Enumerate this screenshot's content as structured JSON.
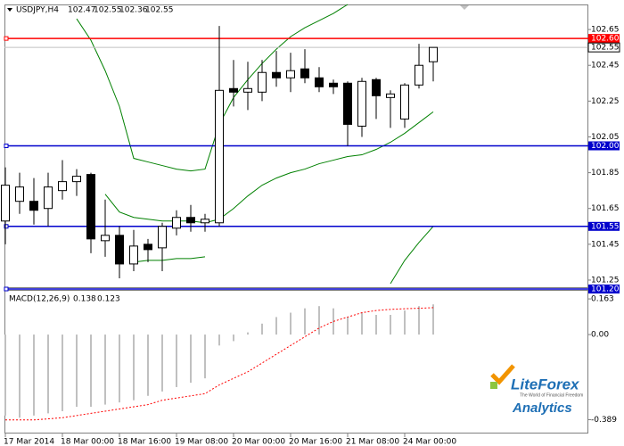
{
  "chart_data": [
    {
      "type": "candlestick",
      "title": "USDJPY,H4",
      "categories": [
        "17 Mar 2014",
        null,
        null,
        null,
        "18 Mar 00:00",
        null,
        null,
        null,
        "18 Mar 16:00",
        null,
        null,
        null,
        "19 Mar 08:00",
        null,
        null,
        null,
        "20 Mar 00:00",
        null,
        null,
        null,
        "20 Mar 16:00",
        null,
        null,
        null,
        "21 Mar 08:00",
        null,
        null,
        null,
        "24 Mar 00:00",
        null,
        null
      ],
      "open": [
        101.58,
        101.69,
        101.69,
        101.65,
        101.75,
        101.8,
        101.84,
        101.47,
        101.5,
        101.34,
        101.45,
        101.43,
        101.54,
        101.6,
        101.57,
        101.57,
        102.32,
        102.3,
        102.3,
        102.41,
        102.38,
        102.43,
        102.38,
        102.35,
        102.35,
        102.11,
        102.37,
        102.27,
        102.15,
        102.34,
        102.47
      ],
      "high": [
        101.88,
        101.85,
        101.82,
        101.85,
        101.92,
        101.87,
        101.85,
        101.7,
        101.55,
        101.53,
        101.48,
        101.57,
        101.64,
        101.67,
        101.62,
        102.67,
        102.48,
        102.47,
        102.48,
        102.53,
        102.52,
        102.54,
        102.44,
        102.37,
        102.36,
        102.38,
        102.38,
        102.31,
        102.35,
        102.57,
        102.55
      ],
      "low": [
        101.45,
        101.62,
        101.56,
        101.55,
        101.7,
        101.72,
        101.4,
        101.38,
        101.26,
        101.3,
        101.35,
        101.3,
        101.5,
        101.52,
        101.52,
        101.55,
        102.22,
        102.2,
        102.25,
        102.33,
        102.3,
        102.35,
        102.3,
        102.29,
        102.0,
        102.05,
        102.15,
        102.1,
        102.1,
        102.32,
        102.36
      ],
      "close": [
        101.78,
        101.77,
        101.64,
        101.77,
        101.8,
        101.83,
        101.48,
        101.5,
        101.34,
        101.44,
        101.42,
        101.55,
        101.6,
        101.57,
        101.59,
        102.31,
        102.3,
        102.32,
        102.41,
        102.38,
        102.42,
        102.38,
        102.33,
        102.33,
        102.12,
        102.36,
        102.28,
        102.29,
        102.34,
        102.45,
        102.55
      ],
      "up_color": "#ffffff",
      "down_color": "#000000",
      "bands": [
        {
          "color": "#008000",
          "values": [
            null,
            null,
            null,
            null,
            null,
            102.71,
            102.59,
            102.42,
            102.22,
            101.93,
            101.91,
            101.89,
            101.87,
            101.86,
            101.87,
            102.12,
            102.27,
            102.37,
            102.46,
            102.54,
            102.61,
            102.66,
            102.7,
            102.74,
            102.79,
            null,
            null,
            null,
            null,
            null,
            null
          ]
        },
        {
          "color": "#008000",
          "values": [
            null,
            null,
            null,
            null,
            null,
            null,
            null,
            101.73,
            101.63,
            101.6,
            101.59,
            101.58,
            101.58,
            101.58,
            101.57,
            101.59,
            101.65,
            101.72,
            101.78,
            101.82,
            101.85,
            101.87,
            101.9,
            101.92,
            101.94,
            101.95,
            101.98,
            102.02,
            102.07,
            102.13,
            102.19
          ]
        },
        {
          "color": "#008000",
          "values": [
            null,
            null,
            null,
            null,
            null,
            null,
            null,
            null,
            null,
            101.35,
            101.36,
            101.36,
            101.37,
            101.37,
            101.38,
            null,
            null,
            null,
            null,
            null,
            null,
            null,
            null,
            null,
            null,
            null,
            null,
            101.23,
            101.36,
            101.46,
            101.55
          ]
        }
      ],
      "levels": [
        {
          "value": 102.6,
          "label": "102.60",
          "color": "#ff0000"
        },
        {
          "value": 102,
          "label": "102.00",
          "color": "#0000cc"
        },
        {
          "value": 101.55,
          "label": "101.55",
          "color": "#0000cc"
        },
        {
          "value": 101.2,
          "label": "101.20",
          "color": "#0000cc"
        }
      ],
      "ylim": [
        101.21,
        102.79
      ],
      "yticks": [
        102.65,
        102.45,
        102.25,
        102.05,
        101.85,
        101.65,
        101.45,
        101.25
      ]
    },
    {
      "type": "macd",
      "title": "MACD(12,26,9)",
      "histogram": {
        "color": "#c0c0c0",
        "values": [
          -0.37,
          -0.38,
          -0.37,
          -0.36,
          -0.35,
          -0.33,
          -0.33,
          -0.32,
          -0.31,
          -0.3,
          -0.28,
          -0.26,
          -0.24,
          -0.22,
          -0.2,
          -0.05,
          -0.03,
          0.01,
          0.05,
          0.08,
          0.1,
          0.12,
          0.13,
          0.12,
          0.08,
          0.1,
          0.09,
          0.09,
          0.11,
          0.13,
          0.138
        ]
      },
      "signal": {
        "color": "#ff0000",
        "values": [
          -0.39,
          -0.39,
          -0.39,
          -0.385,
          -0.38,
          -0.37,
          -0.36,
          -0.35,
          -0.34,
          -0.33,
          -0.32,
          -0.3,
          -0.29,
          -0.28,
          -0.27,
          -0.23,
          -0.2,
          -0.17,
          -0.13,
          -0.09,
          -0.05,
          -0.01,
          0.03,
          0.06,
          0.08,
          0.1,
          0.11,
          0.115,
          0.118,
          0.12,
          0.123
        ]
      },
      "ylim": [
        -0.448,
        0.2
      ],
      "yticks": [
        0.163,
        {
          "value": 0,
          "label": "0.00"
        },
        -0.389
      ]
    }
  ],
  "logo": {
    "name": "LiteForex",
    "tagline": "The World of Financial Freedom",
    "subtitle": "Analytics"
  }
}
